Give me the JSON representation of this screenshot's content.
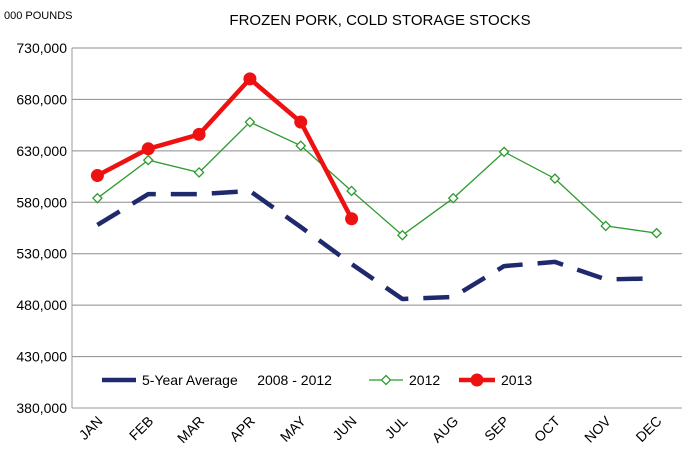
{
  "chart_data": {
    "type": "line",
    "title": "FROZEN PORK, COLD STORAGE STOCKS",
    "unit_label": "000 POUNDS",
    "categories": [
      "JAN",
      "FEB",
      "MAR",
      "APR",
      "MAY",
      "JUN",
      "JUL",
      "AUG",
      "SEP",
      "OCT",
      "NOV",
      "DEC"
    ],
    "ylim": [
      380000,
      730000
    ],
    "yticks": [
      380000,
      430000,
      480000,
      530000,
      580000,
      630000,
      680000,
      730000
    ],
    "ytick_labels": [
      "380,000",
      "430,000",
      "480,000",
      "530,000",
      "580,000",
      "630,000",
      "680,000",
      "730,000"
    ],
    "grid": true,
    "legend_position": "bottom-inside",
    "series": [
      {
        "name": "5-Year Average     2008 - 2012",
        "color": "#1f2a6e",
        "style": "dashed",
        "values": [
          558000,
          588000,
          588000,
          591000,
          556000,
          520000,
          486000,
          488000,
          518000,
          522000,
          505000,
          506000
        ]
      },
      {
        "name": "2012",
        "color": "#2e9a2e",
        "style": "diamond",
        "values": [
          584000,
          621000,
          609000,
          658000,
          635000,
          591000,
          548000,
          584000,
          629000,
          603000,
          557000,
          550000
        ]
      },
      {
        "name": "2013",
        "color": "#ee1111",
        "style": "circle",
        "values": [
          606000,
          632000,
          646000,
          700000,
          658000,
          564000,
          null,
          null,
          null,
          null,
          null,
          null
        ]
      }
    ]
  }
}
